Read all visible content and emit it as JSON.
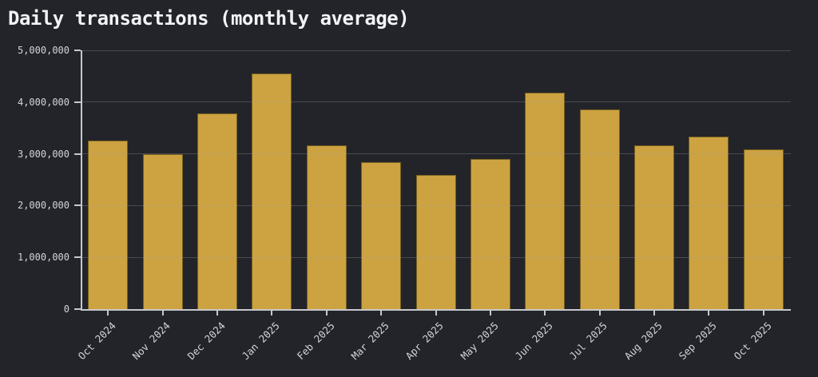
{
  "page": {
    "background_color": "#232429"
  },
  "chart_data": {
    "type": "bar",
    "title": "Daily transactions (monthly average)",
    "categories": [
      "Oct 2024",
      "Nov 2024",
      "Dec 2024",
      "Jan 2025",
      "Feb 2025",
      "Mar 2025",
      "Apr 2025",
      "May 2025",
      "Jun 2025",
      "Jul 2025",
      "Aug 2025",
      "Sep 2025",
      "Oct 2025"
    ],
    "values": [
      3250000,
      3000000,
      3780000,
      4550000,
      3160000,
      2840000,
      2590000,
      2900000,
      4180000,
      3860000,
      3170000,
      3340000,
      3080000
    ],
    "xlabel": "",
    "ylabel": "",
    "ylim": [
      0,
      5000000
    ],
    "ytick_values": [
      0,
      1000000,
      2000000,
      3000000,
      4000000,
      5000000
    ],
    "ytick_labels": [
      "0",
      "1,000,000",
      "2,000,000",
      "3,000,000",
      "4,000,000",
      "5,000,000"
    ],
    "grid": true,
    "gridlines_above_bars": true,
    "legend": false,
    "x_tick_rotation_deg": 45,
    "bar_color": "#cda240",
    "bar_edge_color": "#756020",
    "gridline_color": "rgba(158,162,172,0.30)",
    "axis_color": "#c6c8cc",
    "title_color": "#f2f3f5",
    "tick_label_color": "#d2d4d8"
  }
}
